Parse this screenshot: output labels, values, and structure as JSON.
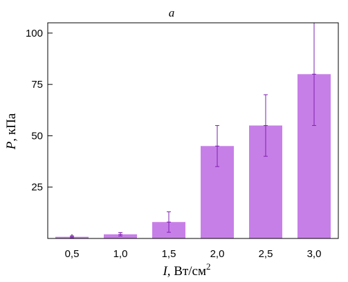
{
  "chart_data": {
    "type": "bar",
    "title": "a",
    "categories": [
      "0,5",
      "1,0",
      "1,5",
      "2,0",
      "2,5",
      "3,0"
    ],
    "values": [
      0.8,
      2,
      8,
      45,
      55,
      80
    ],
    "errors": [
      [
        0.3,
        1.3
      ],
      [
        1.2,
        2.9
      ],
      [
        3,
        13
      ],
      [
        35,
        55
      ],
      [
        40,
        70
      ],
      [
        55,
        105
      ]
    ],
    "yticks": [
      25,
      50,
      75,
      100
    ],
    "ylim": [
      0,
      105
    ],
    "xlabel": {
      "symbol": "I",
      "unit": ", Вт/см",
      "sup": "2"
    },
    "ylabel": {
      "symbol": "P",
      "unit": ", кПа"
    },
    "colors": {
      "bar": "#c77fe8",
      "error": "#7e1fb0"
    }
  }
}
